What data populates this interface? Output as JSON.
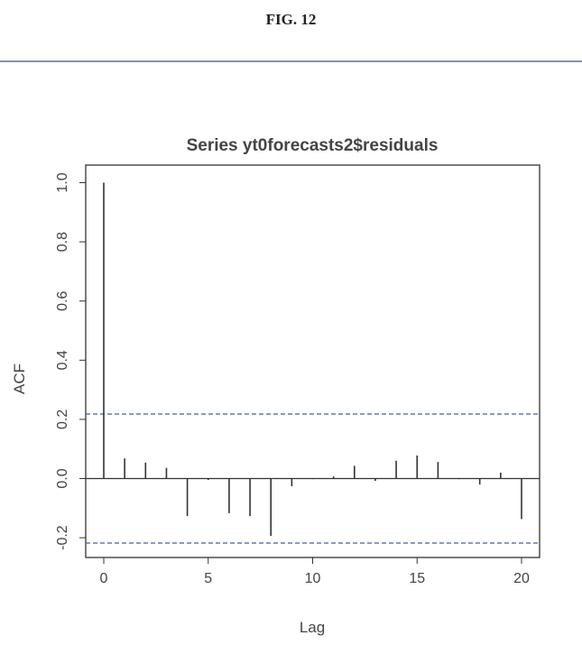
{
  "figure_label": "FIG. 12",
  "chart_data": {
    "type": "bar",
    "title": "Series  yt0forecasts2$residuals",
    "xlabel": "Lag",
    "ylabel": "ACF",
    "x": [
      0,
      1,
      2,
      3,
      4,
      5,
      6,
      7,
      8,
      9,
      10,
      11,
      12,
      13,
      14,
      15,
      16,
      17,
      18,
      19,
      20
    ],
    "values": [
      1.0,
      0.068,
      0.054,
      0.036,
      -0.127,
      -0.005,
      -0.117,
      -0.127,
      -0.194,
      -0.026,
      -0.002,
      0.007,
      0.043,
      -0.008,
      0.06,
      0.078,
      0.056,
      -0.002,
      -0.02,
      0.02,
      -0.137
    ],
    "confidence_bound": 0.218,
    "xlim": [
      -0.9,
      20.8
    ],
    "ylim": [
      -0.27,
      1.05
    ],
    "xticks": [
      "0",
      "5",
      "10",
      "15",
      "20"
    ],
    "yticks": [
      "-0.2",
      "0.0",
      "0.2",
      "0.4",
      "0.6",
      "0.8",
      "1.0"
    ],
    "grid": false,
    "colors": {
      "bars": "#333333",
      "bounds": "#4a5aa8",
      "text": "#444444"
    }
  }
}
